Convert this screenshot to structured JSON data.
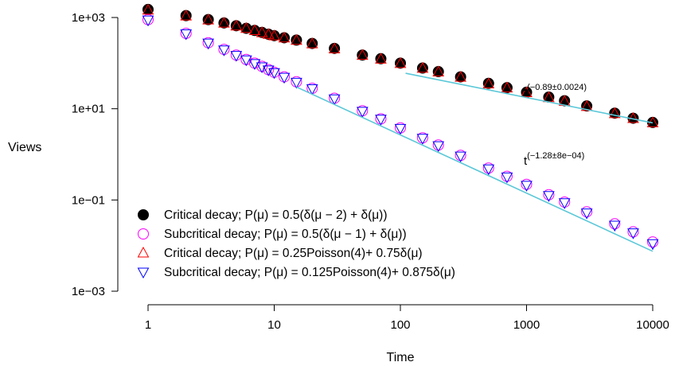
{
  "chart_data": {
    "type": "scatter",
    "xlabel": "Time",
    "ylabel": "Views",
    "xscale": "log",
    "yscale": "log",
    "xlim": [
      1,
      10000
    ],
    "ylim": [
      0.001,
      1000
    ],
    "xticks": [
      {
        "value": 1,
        "label": "1"
      },
      {
        "value": 10,
        "label": "10"
      },
      {
        "value": 100,
        "label": "100"
      },
      {
        "value": 1000,
        "label": "1000"
      },
      {
        "value": 10000,
        "label": "10000"
      }
    ],
    "yticks": [
      {
        "value": 1000,
        "label": "1e+03"
      },
      {
        "value": 10,
        "label": "1e+01"
      },
      {
        "value": 0.1,
        "label": "1e−01"
      },
      {
        "value": 0.001,
        "label": "1e−03"
      }
    ],
    "grid": false,
    "legend_position": "bottom-left",
    "series": [
      {
        "name": "Critical decay; P(μ) = 0.5(δ(μ − 2) + δ(μ))",
        "marker": "filled-circle",
        "color": "#000000",
        "x": [
          1,
          2,
          3,
          4,
          5,
          6,
          7,
          8,
          9,
          10,
          12,
          15,
          20,
          30,
          50,
          70,
          100,
          150,
          200,
          300,
          500,
          700,
          1000,
          1500,
          2000,
          3000,
          5000,
          7000,
          10000
        ],
        "y": [
          1500,
          1100,
          900,
          760,
          660,
          580,
          520,
          470,
          430,
          400,
          360,
          320,
          270,
          210,
          150,
          125,
          100,
          78,
          65,
          50,
          36,
          29,
          23,
          18,
          15,
          11.5,
          8,
          6.2,
          5
        ]
      },
      {
        "name": "Subcritical decay; P(μ) = 0.5(δ(μ − 1) + δ(μ))",
        "marker": "open-circle",
        "color": "#ff00ff",
        "x": [
          1,
          2,
          3,
          4,
          5,
          6,
          7,
          8,
          9,
          10,
          12,
          15,
          20,
          30,
          50,
          70,
          100,
          150,
          200,
          300,
          500,
          700,
          1000,
          1500,
          2000,
          3000,
          5000,
          7000,
          10000
        ],
        "y": [
          900,
          450,
          280,
          200,
          150,
          120,
          100,
          85,
          72,
          63,
          50,
          39,
          28,
          17,
          9,
          6,
          3.8,
          2.3,
          1.6,
          0.95,
          0.5,
          0.33,
          0.22,
          0.13,
          0.09,
          0.055,
          0.03,
          0.02,
          0.012
        ]
      },
      {
        "name": "Critical decay; P(μ) = 0.25Poisson(4)+ 0.75δ(μ)",
        "marker": "open-triangle",
        "color": "#ff0000",
        "x": [
          1,
          2,
          3,
          4,
          5,
          6,
          7,
          8,
          9,
          10,
          12,
          15,
          20,
          30,
          50,
          70,
          100,
          150,
          200,
          300,
          500,
          700,
          1000,
          1500,
          2000,
          3000,
          5000,
          7000,
          10000
        ],
        "y": [
          1450,
          1080,
          880,
          750,
          650,
          575,
          515,
          465,
          425,
          395,
          355,
          315,
          265,
          205,
          148,
          122,
          98,
          77,
          64,
          49,
          35,
          28.5,
          22.5,
          17.5,
          14.5,
          11.2,
          7.8,
          6.1,
          4.9
        ]
      },
      {
        "name": "Subcritical decay; P(μ) = 0.125Poisson(4)+ 0.875δ(μ)",
        "marker": "open-triangle-down",
        "color": "#0000ff",
        "x": [
          1,
          2,
          3,
          4,
          5,
          6,
          7,
          8,
          9,
          10,
          12,
          15,
          20,
          30,
          50,
          70,
          100,
          150,
          200,
          300,
          500,
          700,
          1000,
          1500,
          2000,
          3000,
          5000,
          7000,
          10000
        ],
        "y": [
          880,
          440,
          275,
          195,
          148,
          118,
          98,
          83,
          71,
          62,
          49,
          38,
          27.5,
          16.5,
          8.8,
          5.9,
          3.7,
          2.25,
          1.55,
          0.92,
          0.48,
          0.32,
          0.21,
          0.125,
          0.087,
          0.052,
          0.028,
          0.019,
          0.011
        ]
      }
    ],
    "fits": [
      {
        "label": "t",
        "exponent": "(−0.89±0.0024)",
        "color": "#5bc8d8",
        "x": [
          110,
          10000
        ],
        "y": [
          60,
          4.9
        ]
      },
      {
        "label": "t",
        "exponent": "(−1.28±8e−04)",
        "color": "#5bc8d8",
        "x": [
          15,
          10000
        ],
        "y": [
          30,
          0.0075
        ]
      }
    ]
  }
}
